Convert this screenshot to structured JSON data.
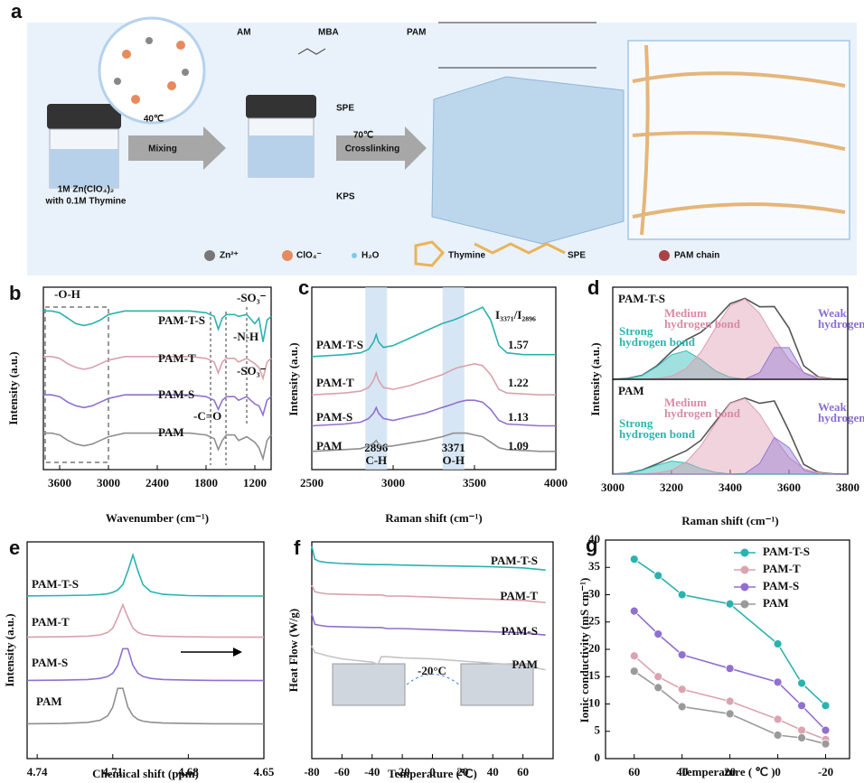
{
  "schematic": {
    "panel": "a",
    "reagents": [
      "AM",
      "MBA",
      "PAM",
      "SPE",
      "KPS"
    ],
    "steps": [
      {
        "temperature": "40℃",
        "label": "Mixing"
      },
      {
        "temperature": "70℃",
        "label": "Crosslinking"
      }
    ],
    "solution": [
      "1M Zn(ClO₄)₂",
      "with 0.1M Thymine"
    ],
    "legend": [
      "Zn²⁺",
      "ClO₄⁻",
      "H₂O",
      "Thymine",
      "SPE",
      "PAM chain"
    ]
  },
  "chart_data": [
    {
      "type": "line",
      "panel": "b",
      "xlabel": "Wavenumber (cm⁻¹)",
      "ylabel": "Intensity (a.u.)",
      "xlim": [
        3800,
        1000
      ],
      "xticks": [
        3600,
        3000,
        2400,
        1800,
        1200
      ],
      "ylim": [
        0,
        10
      ],
      "annotations": [
        "-O-H",
        "-SO₃⁻",
        "-N-H",
        "-SO₃⁻",
        "-C=O"
      ],
      "x": [
        3800,
        3700,
        3600,
        3500,
        3400,
        3300,
        3200,
        3100,
        3000,
        2900,
        2800,
        2600,
        2400,
        2200,
        2000,
        1800,
        1700,
        1650,
        1600,
        1550,
        1450,
        1400,
        1300,
        1200,
        1150,
        1100,
        1050,
        1000
      ],
      "series": [
        {
          "name": "PAM-T-S",
          "color": "#2ab3ae",
          "values": [
            8.7,
            8.7,
            8.6,
            8.3,
            8.0,
            7.9,
            8.0,
            8.2,
            8.5,
            8.6,
            8.7,
            8.7,
            8.7,
            8.7,
            8.7,
            8.6,
            8.4,
            7.7,
            8.3,
            8.5,
            8.5,
            8.4,
            8.5,
            8.0,
            8.3,
            7.0,
            8.2,
            8.4
          ]
        },
        {
          "name": "PAM-T",
          "color": "#d9a1ac",
          "values": [
            6.2,
            6.2,
            6.1,
            5.8,
            5.6,
            5.5,
            5.6,
            5.8,
            6.0,
            6.1,
            6.2,
            6.2,
            6.2,
            6.2,
            6.2,
            6.1,
            5.9,
            5.3,
            5.9,
            6.1,
            6.1,
            5.9,
            6.1,
            5.8,
            5.6,
            5.0,
            5.9,
            6.1
          ]
        },
        {
          "name": "PAM-S",
          "color": "#9170cf",
          "values": [
            4.1,
            4.1,
            4.0,
            3.7,
            3.5,
            3.4,
            3.5,
            3.7,
            3.9,
            4.0,
            4.1,
            4.1,
            4.1,
            4.1,
            4.1,
            4.0,
            3.8,
            3.3,
            3.8,
            4.0,
            4.0,
            3.8,
            4.0,
            3.6,
            3.5,
            3.0,
            3.8,
            4.0
          ]
        },
        {
          "name": "PAM",
          "color": "#8f8f8f",
          "values": [
            2.0,
            2.0,
            1.9,
            1.6,
            1.4,
            1.3,
            1.4,
            1.6,
            1.8,
            1.9,
            2.0,
            2.0,
            2.0,
            2.0,
            2.0,
            1.9,
            1.7,
            1.1,
            1.6,
            1.9,
            1.9,
            1.6,
            1.8,
            1.5,
            1.2,
            0.6,
            1.6,
            1.9
          ]
        }
      ]
    },
    {
      "type": "line",
      "panel": "c",
      "xlabel": "Raman shift (cm⁻¹)",
      "ylabel": "Intensity (a.u.)",
      "xlim": [
        2500,
        4000
      ],
      "xticks": [
        2500,
        3000,
        3500,
        4000
      ],
      "ylim": [
        0,
        10
      ],
      "bands": [
        {
          "x": 2896,
          "label": "C-H"
        },
        {
          "x": 3371,
          "label": "O-H"
        }
      ],
      "ratio_label": "I₃₃₇₁/I₂₈₉₆",
      "ratios": [
        1.57,
        1.22,
        1.13,
        1.09
      ],
      "x": [
        2500,
        2600,
        2700,
        2800,
        2850,
        2880,
        2896,
        2910,
        2940,
        3000,
        3100,
        3200,
        3300,
        3371,
        3400,
        3450,
        3500,
        3550,
        3600,
        3650,
        3700,
        3800,
        3900,
        4000
      ],
      "series": [
        {
          "name": "PAM-T-S",
          "color": "#2ab3ae",
          "values": [
            6.2,
            6.25,
            6.3,
            6.4,
            6.6,
            7.0,
            7.4,
            7.0,
            6.7,
            6.8,
            7.2,
            7.6,
            8.0,
            8.2,
            8.3,
            8.5,
            8.7,
            8.9,
            8.2,
            6.8,
            6.4,
            6.3,
            6.3,
            6.3
          ]
        },
        {
          "name": "PAM-T",
          "color": "#d9a1ac",
          "values": [
            4.1,
            4.15,
            4.2,
            4.3,
            4.5,
            4.9,
            5.3,
            4.9,
            4.5,
            4.4,
            4.6,
            4.9,
            5.2,
            5.5,
            5.6,
            5.7,
            5.8,
            5.7,
            5.2,
            4.4,
            4.2,
            4.15,
            4.1,
            4.1
          ]
        },
        {
          "name": "PAM-S",
          "color": "#9170cf",
          "values": [
            2.4,
            2.45,
            2.5,
            2.6,
            2.8,
            3.1,
            3.4,
            3.1,
            2.8,
            2.7,
            2.9,
            3.1,
            3.4,
            3.6,
            3.7,
            3.8,
            3.8,
            3.7,
            3.3,
            2.7,
            2.5,
            2.45,
            2.4,
            2.4
          ]
        },
        {
          "name": "PAM",
          "color": "#8f8f8f",
          "values": [
            1.0,
            1.05,
            1.1,
            1.15,
            1.3,
            1.45,
            1.6,
            1.4,
            1.25,
            1.3,
            1.45,
            1.6,
            1.8,
            2.0,
            2.0,
            2.0,
            1.9,
            1.8,
            1.5,
            1.2,
            1.1,
            1.05,
            1.0,
            1.0
          ]
        }
      ]
    },
    {
      "type": "line",
      "panel": "d",
      "title": "PAM-T-S",
      "ylabel": "Intensity (a.u.)",
      "xlim": [
        3000,
        3800
      ],
      "ylim": [
        0,
        3.2
      ],
      "x": [
        3000,
        3050,
        3100,
        3150,
        3200,
        3250,
        3300,
        3350,
        3400,
        3450,
        3500,
        3550,
        3600,
        3650,
        3700,
        3750,
        3800
      ],
      "series": [
        {
          "color": "#555555",
          "values": [
            0,
            0.03,
            0.14,
            0.47,
            0.96,
            1.37,
            1.63,
            2.08,
            2.63,
            2.81,
            2.52,
            2.53,
            1.78,
            0.47,
            0.08,
            0.01,
            0
          ]
        },
        {
          "name": "Strong hydrogen bond",
          "color": "#2cbdb8",
          "area": true,
          "values": [
            0,
            0.025,
            0.135,
            0.44,
            0.85,
            0.99,
            0.69,
            0.29,
            0.07,
            0.01,
            0,
            0,
            0,
            0,
            0,
            0,
            0
          ]
        },
        {
          "name": "Medium hydrogen bond",
          "color": "#dd9db2",
          "area": true,
          "values": [
            0,
            0,
            0.005,
            0.03,
            0.11,
            0.38,
            0.94,
            1.79,
            2.56,
            2.79,
            2.29,
            1.43,
            0.68,
            0.24,
            0.07,
            0.01,
            0
          ]
        },
        {
          "name": "Weak hydrogen bond",
          "color": "#9479d4",
          "area": true,
          "values": [
            0,
            0,
            0,
            0,
            0,
            0,
            0,
            0,
            0,
            0.01,
            0.23,
            1.1,
            1.1,
            0.23,
            0.01,
            0,
            0
          ]
        }
      ]
    },
    {
      "type": "line",
      "title": "PAM",
      "xlabel": "Raman shift (cm⁻¹)",
      "xlim": [
        3000,
        3800
      ],
      "xticks": [
        3000,
        3200,
        3400,
        3600,
        3800
      ],
      "ylim": [
        0,
        3.2
      ],
      "x": [
        3000,
        3050,
        3100,
        3150,
        3200,
        3250,
        3300,
        3350,
        3400,
        3450,
        3500,
        3550,
        3600,
        3650,
        3700,
        3750,
        3800
      ],
      "series": [
        {
          "color": "#555555",
          "values": [
            0,
            0.03,
            0.14,
            0.34,
            0.57,
            0.79,
            1.14,
            1.78,
            2.4,
            2.57,
            2.39,
            2.47,
            1.46,
            0.33,
            0.06,
            0.01,
            0
          ]
        },
        {
          "name": "Strong hydrogen bond",
          "color": "#2cbdb8",
          "area": true,
          "values": [
            0,
            0.03,
            0.13,
            0.3,
            0.44,
            0.38,
            0.19,
            0.06,
            0.01,
            0,
            0,
            0,
            0,
            0,
            0,
            0,
            0
          ]
        },
        {
          "name": "Medium hydrogen bond",
          "color": "#dd9db2",
          "area": true,
          "values": [
            0,
            0,
            0.01,
            0.04,
            0.13,
            0.41,
            0.95,
            1.72,
            2.39,
            2.55,
            2.03,
            1.23,
            0.56,
            0.19,
            0.05,
            0.01,
            0
          ]
        },
        {
          "name": "Weak hydrogen bond",
          "color": "#9479d4",
          "area": true,
          "values": [
            0,
            0,
            0,
            0,
            0,
            0,
            0,
            0,
            0,
            0.02,
            0.36,
            1.24,
            0.9,
            0.14,
            0.01,
            0,
            0
          ]
        }
      ]
    },
    {
      "type": "line",
      "panel": "e",
      "xlabel": "Chemical shift (ppm)",
      "ylabel": "Intensity (a.u.)",
      "xlim": [
        4.744,
        4.65
      ],
      "xticks": [
        4.74,
        4.71,
        4.68,
        4.65
      ],
      "ylim": [
        0,
        10
      ],
      "x": [
        4.744,
        4.73,
        4.72,
        4.715,
        4.712,
        4.71,
        4.708,
        4.706,
        4.704,
        4.702,
        4.7,
        4.698,
        4.695,
        4.69,
        4.68,
        4.67,
        4.65
      ],
      "series": [
        {
          "name": "PAM-T-S",
          "color": "#2ab3ae",
          "values": [
            7.51,
            7.52,
            7.54,
            7.57,
            7.61,
            7.67,
            7.78,
            8.03,
            8.66,
            9.4,
            8.66,
            8.03,
            7.71,
            7.58,
            7.52,
            7.51,
            7.5
          ]
        },
        {
          "name": "PAM-T",
          "color": "#d9a1ac",
          "values": [
            5.61,
            5.62,
            5.65,
            5.71,
            5.82,
            6.02,
            6.52,
            7.1,
            6.52,
            6.02,
            5.82,
            5.73,
            5.68,
            5.64,
            5.62,
            5.61,
            5.6
          ]
        },
        {
          "name": "PAM-S",
          "color": "#9170cf",
          "values": [
            3.61,
            3.62,
            3.65,
            3.7,
            3.79,
            3.94,
            4.3,
            5.07,
            5.07,
            4.3,
            3.94,
            3.79,
            3.7,
            3.65,
            3.62,
            3.61,
            3.6
          ]
        },
        {
          "name": "PAM",
          "color": "#8f8f8f",
          "values": [
            1.61,
            1.62,
            1.67,
            1.77,
            1.98,
            2.38,
            3.24,
            3.24,
            2.38,
            1.98,
            1.81,
            1.73,
            1.68,
            1.64,
            1.62,
            1.61,
            1.6
          ]
        }
      ]
    },
    {
      "type": "line",
      "panel": "f",
      "xlabel": "Temperature (℃)",
      "ylabel": "Heat Flow (W/g)",
      "xlim": [
        -80,
        80
      ],
      "xticks": [
        -80,
        -60,
        -40,
        -20,
        0,
        20,
        40,
        60
      ],
      "ylim": [
        0,
        10
      ],
      "annotation": "-20°C",
      "x": [
        -80,
        -78,
        -75,
        -70,
        -60,
        -40,
        -36,
        -34,
        -30,
        -20,
        0,
        20,
        40,
        60,
        75
      ],
      "series": [
        {
          "name": "PAM-T-S",
          "color": "#2ab3ae",
          "values": [
            9.8,
            9.2,
            9.1,
            9.05,
            9.0,
            8.95,
            8.95,
            8.95,
            8.95,
            8.93,
            8.9,
            8.88,
            8.85,
            8.8,
            8.7
          ]
        },
        {
          "name": "PAM-T",
          "color": "#d9a1ac",
          "values": [
            8.0,
            7.7,
            7.65,
            7.6,
            7.58,
            7.55,
            7.55,
            7.55,
            7.5,
            7.5,
            7.45,
            7.4,
            7.35,
            7.3,
            7.2
          ]
        },
        {
          "name": "PAM-S",
          "color": "#9170cf",
          "values": [
            6.7,
            6.2,
            6.15,
            6.1,
            6.08,
            6.05,
            6.05,
            6.05,
            6.0,
            6.0,
            5.95,
            5.9,
            5.85,
            5.8,
            5.7
          ]
        },
        {
          "name": "PAM",
          "color": "#c4c4c4",
          "values": [
            5.2,
            4.9,
            4.85,
            4.75,
            4.6,
            4.45,
            4.35,
            4.7,
            4.7,
            4.65,
            4.6,
            4.5,
            4.4,
            4.3,
            4.1
          ]
        }
      ]
    },
    {
      "type": "line",
      "panel": "g",
      "xlabel": "Temperature ( ℃ )",
      "ylabel": "Ionic conductivity (mS cm⁻¹)",
      "xlim": [
        72,
        -30
      ],
      "xticks": [
        60,
        40,
        20,
        0,
        -20
      ],
      "ylim": [
        0,
        40
      ],
      "yticks": [
        0,
        5,
        10,
        15,
        20,
        25,
        30,
        35,
        40
      ],
      "markers": true,
      "legend": "upper right",
      "x": [
        60,
        50,
        40,
        20,
        0,
        -10,
        -20
      ],
      "series": [
        {
          "name": "PAM-T-S",
          "color": "#2ab3ae",
          "values": [
            36.5,
            33.5,
            30,
            28.3,
            21,
            13.8,
            9.7
          ]
        },
        {
          "name": "PAM-T",
          "color": "#dba3b0",
          "values": [
            18.8,
            15,
            12.7,
            10.5,
            7.2,
            5.2,
            3.5
          ]
        },
        {
          "name": "PAM-S",
          "color": "#9170cf",
          "values": [
            27,
            22.8,
            19,
            16.5,
            14,
            9.7,
            5.2
          ]
        },
        {
          "name": "PAM",
          "color": "#9a9a9a",
          "values": [
            16,
            13,
            9.5,
            8.2,
            4.3,
            3.8,
            2.7
          ]
        }
      ]
    }
  ]
}
